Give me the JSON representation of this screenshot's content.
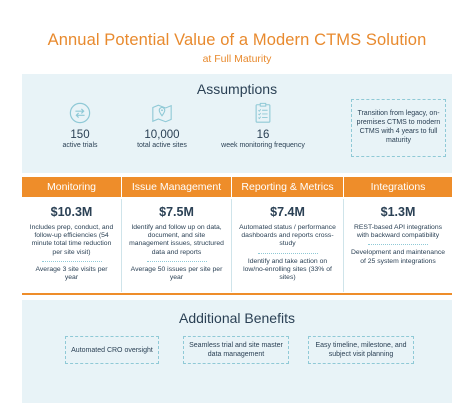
{
  "header": {
    "title": "Annual Potential Value of a Modern CTMS Solution",
    "subtitle": "at Full Maturity"
  },
  "assumptions": {
    "title": "Assumptions",
    "stats": [
      {
        "icon": "arrows-cycle-icon",
        "value": "150",
        "label": "active trials"
      },
      {
        "icon": "map-pin-icon",
        "value": "10,000",
        "label": "total active sites"
      },
      {
        "icon": "checklist-icon",
        "value": "16",
        "label": "week monitoring frequency"
      }
    ],
    "note": "Transition from legacy, on-premises CTMS to modern CTMS with 4 years to full maturity"
  },
  "categories": [
    {
      "name": "Monitoring",
      "value": "$10.3M",
      "text1": "Includes prep, conduct, and follow-up efficiencies (54 minute total time reduction per site visit)",
      "text2": "Average 3 site visits per year"
    },
    {
      "name": "Issue Management",
      "value": "$7.5M",
      "text1": "Identify and follow up on data, document, and site management issues, structured data and reports",
      "text2": "Average 50 issues per site per year"
    },
    {
      "name": "Reporting & Metrics",
      "value": "$7.4M",
      "text1": "Automated status / performance dashboards and reports cross-study",
      "text2": "Identify and take action on low/no-enrolling sites (33% of sites)"
    },
    {
      "name": "Integrations",
      "value": "$1.3M",
      "text1": "REST-based API integrations with backward compatibility",
      "text2": "Development and maintenance of 25 system integrations"
    }
  ],
  "benefits": {
    "title": "Additional Benefits",
    "items": [
      "Automated CRO oversight",
      "Seamless trial and site master data management",
      "Easy timeline, milestone, and subject visit planning"
    ]
  },
  "colors": {
    "accent": "#ee8d2a",
    "panel": "#e8f3f7",
    "text": "#2b4155",
    "icon": "#8fc9d6"
  }
}
